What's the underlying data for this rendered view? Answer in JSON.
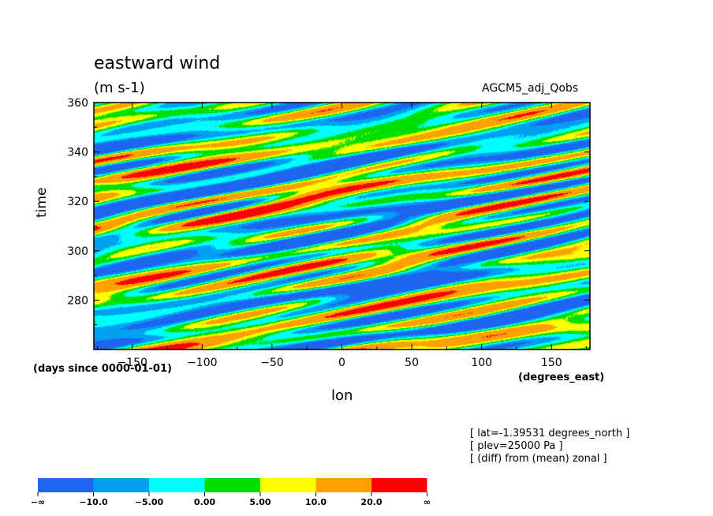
{
  "chart_data": {
    "type": "heatmap",
    "title": "eastward wind",
    "units": "(m s-1)",
    "run_label": "AGCM5_adj_Qobs",
    "xlabel": "lon",
    "xunits": "(degrees_east)",
    "ylabel": "time",
    "yunits": "(days since 0000-01-01)",
    "xlim": [
      -177.5,
      177.5
    ],
    "ylim": [
      260,
      360
    ],
    "xticks": [
      -150,
      -100,
      -50,
      0,
      50,
      100,
      150
    ],
    "xtick_labels": [
      "−150",
      "−100",
      "−50",
      "0",
      "50",
      "100",
      "150"
    ],
    "yticks": [
      280,
      300,
      320,
      340,
      360
    ],
    "ytick_labels": [
      "280",
      "300",
      "320",
      "340",
      "360"
    ],
    "notes": [
      "[ lat=-1.39531 degrees_north ]",
      "[ plev=25000 Pa ]",
      "[ (diff) from (mean) zonal ]"
    ],
    "colorbar": {
      "colors": [
        "#1e64f0",
        "#00a0f0",
        "#00ffff",
        "#00e000",
        "#ffff00",
        "#ffa000",
        "#ff0000"
      ],
      "tick_labels": [
        "−∞",
        "−10.0",
        "−5.00",
        "0.00",
        "5.00",
        "10.0",
        "20.0",
        "∞"
      ]
    }
  }
}
